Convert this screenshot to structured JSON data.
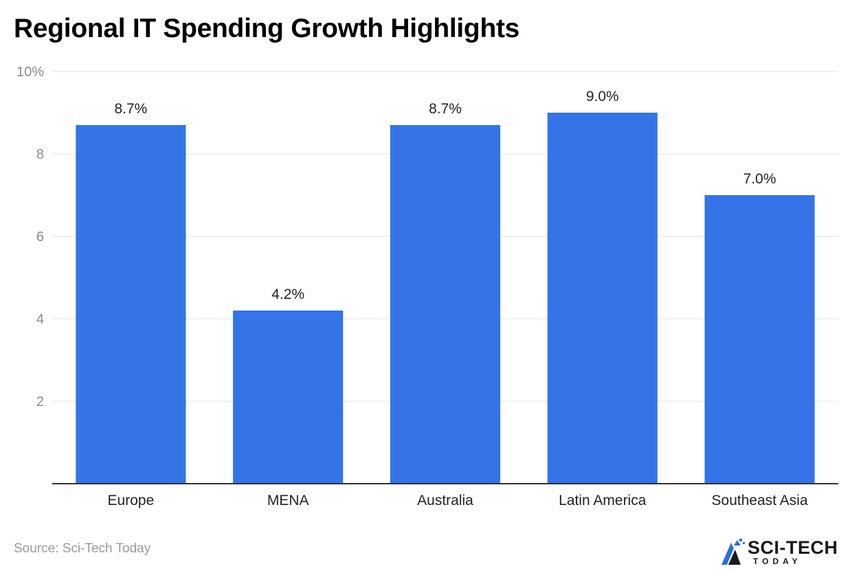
{
  "title": "Regional IT Spending Growth Highlights",
  "source": "Source: Sci-Tech Today",
  "logo": {
    "name": "SCI-TECH",
    "sub": "TODAY"
  },
  "colors": {
    "bar": "#3474e6",
    "grid": "#e0e0e0",
    "axis": "#333333",
    "tick_label": "#8a8a8a"
  },
  "chart_data": {
    "type": "bar",
    "categories": [
      "Europe",
      "MENA",
      "Australia",
      "Latin America",
      "Southeast Asia"
    ],
    "values": [
      8.7,
      4.2,
      8.7,
      9.0,
      7.0
    ],
    "data_labels": [
      "8.7%",
      "4.2%",
      "8.7%",
      "9.0%",
      "7.0%"
    ],
    "title": "Regional IT Spending Growth Highlights",
    "xlabel": "",
    "ylabel": "",
    "ylim": [
      0,
      10
    ],
    "yticks": [
      2,
      4,
      6,
      8,
      10
    ],
    "ytick_labels": [
      "2",
      "4",
      "6",
      "8",
      "10%"
    ],
    "grid": true,
    "legend": "none"
  }
}
